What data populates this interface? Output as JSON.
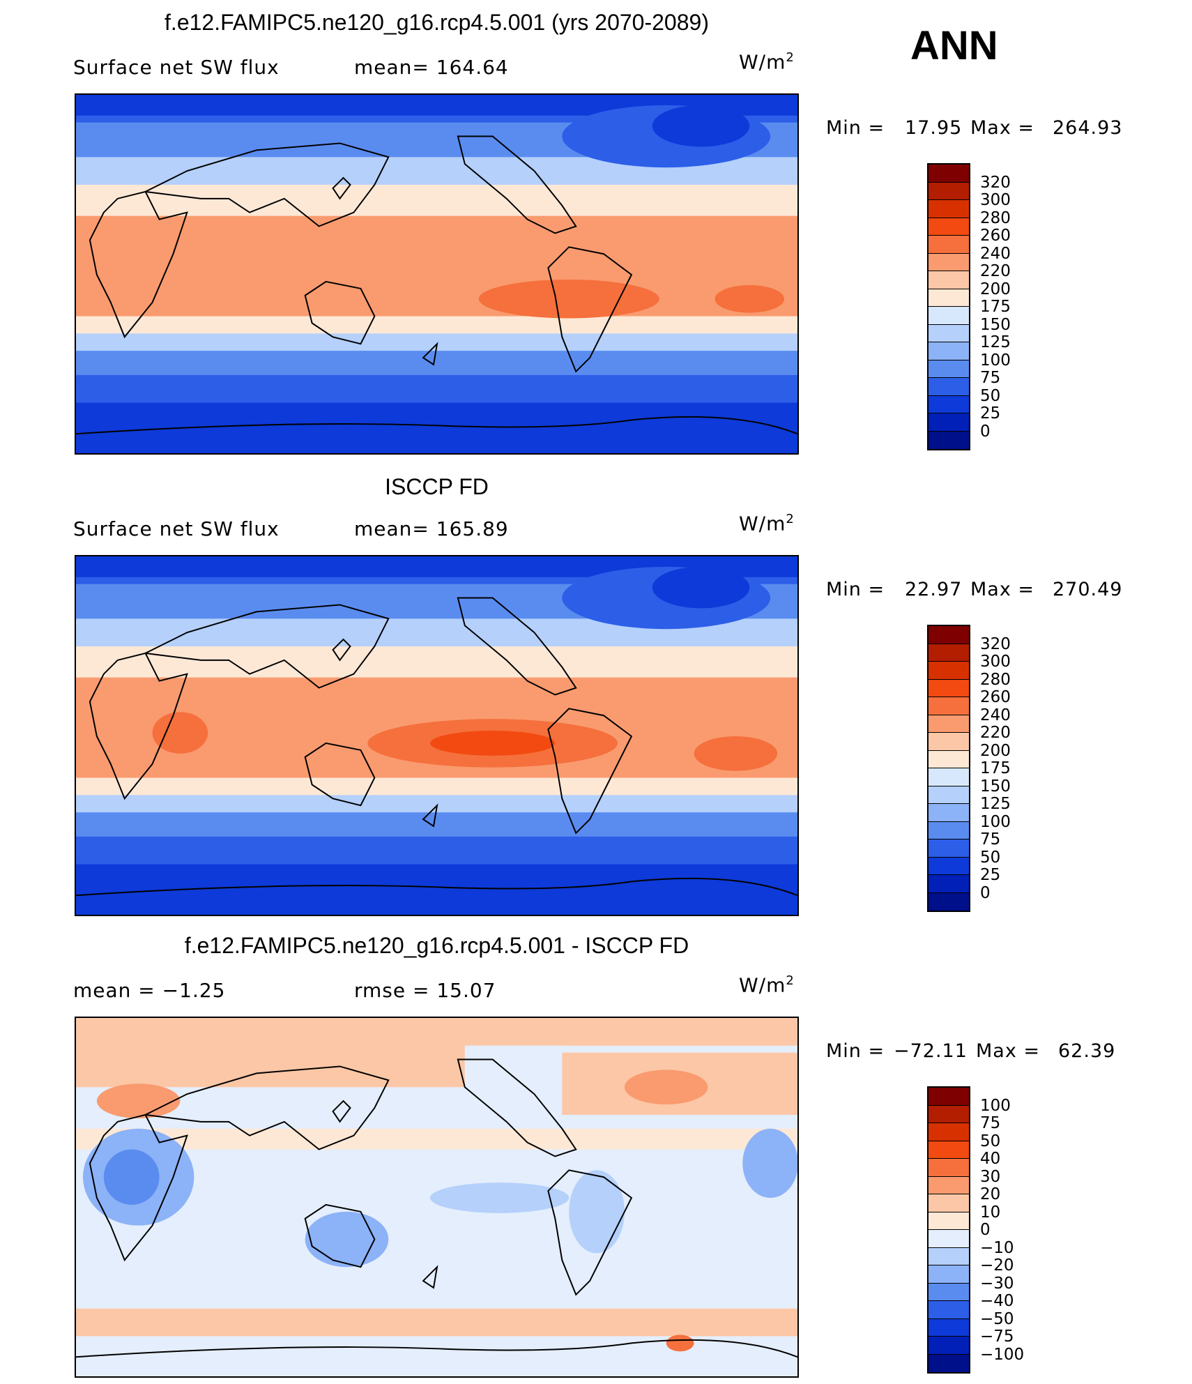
{
  "season": "ANN",
  "units": "W/m",
  "units_sup": "2",
  "panels": [
    {
      "id": "model",
      "title": "f.e12.FAMIPC5.ne120_g16.rcp4.5.001 (yrs 2070-2089)",
      "subtitle_left": "Surface net SW flux",
      "subtitle_mid": "mean=  164.64",
      "min_label": "Min  =",
      "min_value": "17.95",
      "max_label": "Max  =",
      "max_value": "264.93",
      "colorbar_labels": [
        "320",
        "300",
        "280",
        "260",
        "240",
        "220",
        "200",
        "175",
        "150",
        "125",
        "100",
        "75",
        "50",
        "25",
        "0"
      ],
      "colors": [
        "#7f0000",
        "#b31d00",
        "#d83100",
        "#f24a11",
        "#f5703c",
        "#f99b6f",
        "#fcc7a6",
        "#fde8d6",
        "#d8e8fc",
        "#b4d0fb",
        "#8cb2f7",
        "#5a8cf0",
        "#2c5ee8",
        "#0d3ad8",
        "#0020b8",
        "#000f8a"
      ]
    },
    {
      "id": "obs",
      "title": "ISCCP FD",
      "subtitle_left": "Surface net SW flux",
      "subtitle_mid": "mean=  165.89",
      "min_label": "Min  =",
      "min_value": "22.97",
      "max_label": "Max  =",
      "max_value": "270.49",
      "colorbar_labels": [
        "320",
        "300",
        "280",
        "260",
        "240",
        "220",
        "200",
        "175",
        "150",
        "125",
        "100",
        "75",
        "50",
        "25",
        "0"
      ],
      "colors": [
        "#7f0000",
        "#b31d00",
        "#d83100",
        "#f24a11",
        "#f5703c",
        "#f99b6f",
        "#fcc7a6",
        "#fde8d6",
        "#d8e8fc",
        "#b4d0fb",
        "#8cb2f7",
        "#5a8cf0",
        "#2c5ee8",
        "#0d3ad8",
        "#0020b8",
        "#000f8a"
      ]
    },
    {
      "id": "diff",
      "title": "f.e12.FAMIPC5.ne120_g16.rcp4.5.001 - ISCCP FD",
      "subtitle_left": "mean =    −1.25",
      "subtitle_mid": "rmse =    15.07",
      "min_label": "Min  =",
      "min_value": "−72.11",
      "max_label": "Max  =",
      "max_value": "62.39",
      "colorbar_labels": [
        "100",
        "75",
        "50",
        "40",
        "30",
        "20",
        "10",
        "0",
        "−10",
        "−20",
        "−30",
        "−40",
        "−50",
        "−75",
        "−100"
      ],
      "colors": [
        "#7f0000",
        "#b31d00",
        "#d83100",
        "#f24a11",
        "#f5703c",
        "#f99b6f",
        "#fcc7a6",
        "#fde8d6",
        "#e4eefc",
        "#b4d0fb",
        "#8cb2f7",
        "#5a8cf0",
        "#2c5ee8",
        "#0d3ad8",
        "#0020b8",
        "#000f8a"
      ]
    }
  ]
}
